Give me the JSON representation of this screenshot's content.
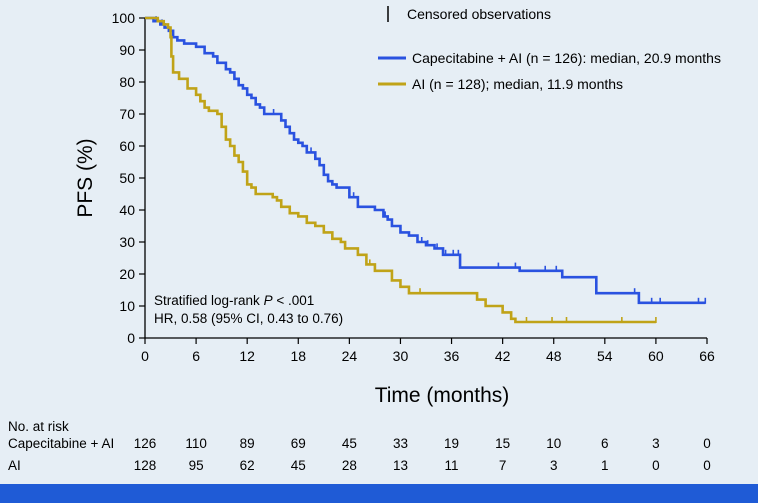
{
  "chart_data": {
    "type": "line",
    "subtype": "kaplan-meier",
    "xlabel": "Time (months)",
    "ylabel": "PFS (%)",
    "xlim": [
      0,
      66
    ],
    "ylim": [
      0,
      100
    ],
    "xticks": [
      0,
      6,
      12,
      18,
      24,
      30,
      36,
      42,
      48,
      54,
      60,
      66
    ],
    "yticks": [
      0,
      10,
      20,
      30,
      40,
      50,
      60,
      70,
      80,
      90,
      100
    ],
    "grid": false,
    "legend": {
      "placement": "top-right",
      "censored_label": "Censored observations"
    },
    "series": [
      {
        "name": "Capecitabine + AI (n = 126): median, 20.9 months",
        "color": "#2a52e0",
        "steps": [
          [
            0,
            100
          ],
          [
            1,
            99
          ],
          [
            1.8,
            98
          ],
          [
            2.3,
            97
          ],
          [
            2.8,
            96
          ],
          [
            3.3,
            94
          ],
          [
            3.8,
            93
          ],
          [
            4.6,
            92
          ],
          [
            6,
            91
          ],
          [
            7,
            89
          ],
          [
            8,
            88
          ],
          [
            8.5,
            86
          ],
          [
            9.5,
            84
          ],
          [
            10,
            83
          ],
          [
            10.5,
            81
          ],
          [
            11,
            79
          ],
          [
            11.5,
            78
          ],
          [
            12,
            76
          ],
          [
            12.5,
            75
          ],
          [
            13,
            73
          ],
          [
            13.5,
            72
          ],
          [
            14,
            70
          ],
          [
            16,
            68
          ],
          [
            16.5,
            66
          ],
          [
            17,
            64
          ],
          [
            17.5,
            62
          ],
          [
            18,
            61
          ],
          [
            18.5,
            60
          ],
          [
            19,
            58
          ],
          [
            20,
            56
          ],
          [
            20.5,
            54
          ],
          [
            21,
            51
          ],
          [
            21.5,
            49
          ],
          [
            22,
            48
          ],
          [
            22.5,
            47
          ],
          [
            24,
            44
          ],
          [
            25,
            41
          ],
          [
            27,
            40
          ],
          [
            28,
            38
          ],
          [
            28.5,
            37
          ],
          [
            29,
            35
          ],
          [
            30,
            33
          ],
          [
            31,
            32
          ],
          [
            32,
            30
          ],
          [
            33,
            29
          ],
          [
            34,
            28
          ],
          [
            35,
            26
          ],
          [
            37,
            22
          ],
          [
            44,
            21
          ],
          [
            49,
            19
          ],
          [
            53,
            14
          ],
          [
            58,
            11
          ],
          [
            65.8,
            11
          ]
        ],
        "censor_x": [
          1.3,
          2,
          15.1,
          17,
          19.5,
          24.5,
          28.2,
          32.5,
          33.2,
          34.3,
          35.3,
          36.2,
          36.8,
          41.5,
          43.5,
          47,
          48.3,
          57.5,
          59.5,
          60.5,
          65,
          65.8
        ]
      },
      {
        "name": "AI (n = 128); median, 11.9 months",
        "color": "#c0a318",
        "steps": [
          [
            0,
            100
          ],
          [
            1.5,
            99
          ],
          [
            2.2,
            98
          ],
          [
            2.7,
            97
          ],
          [
            3,
            94
          ],
          [
            3.1,
            88
          ],
          [
            3.3,
            83
          ],
          [
            4,
            81
          ],
          [
            5,
            78
          ],
          [
            6,
            76
          ],
          [
            6.5,
            74
          ],
          [
            7,
            72
          ],
          [
            7.5,
            71
          ],
          [
            8.5,
            70
          ],
          [
            9,
            66
          ],
          [
            9.5,
            62
          ],
          [
            10,
            60
          ],
          [
            10.5,
            57
          ],
          [
            11,
            55
          ],
          [
            11.5,
            52
          ],
          [
            12,
            48
          ],
          [
            12.5,
            47
          ],
          [
            13,
            45
          ],
          [
            15,
            44
          ],
          [
            15.5,
            43
          ],
          [
            16,
            41
          ],
          [
            17,
            39
          ],
          [
            18,
            38
          ],
          [
            19,
            36
          ],
          [
            20,
            35
          ],
          [
            21,
            33
          ],
          [
            22,
            31
          ],
          [
            23,
            30
          ],
          [
            23.5,
            28
          ],
          [
            25,
            26
          ],
          [
            26,
            23
          ],
          [
            27,
            21
          ],
          [
            29,
            18
          ],
          [
            30,
            16
          ],
          [
            31,
            14
          ],
          [
            39,
            12
          ],
          [
            40,
            10
          ],
          [
            42,
            8
          ],
          [
            43,
            6
          ],
          [
            43.5,
            5
          ],
          [
            60,
            5
          ]
        ],
        "censor_x": [
          26.4,
          32.3,
          44.8,
          47.8,
          49.5,
          56,
          60
        ]
      }
    ],
    "annotations": [
      {
        "text_prefix": "Stratified log-rank ",
        "text_italic": "P",
        "text_suffix": " < .001"
      },
      {
        "text": "HR, 0.58 (95% CI, 0.43 to 0.76)"
      }
    ],
    "risk_table": {
      "title": "No. at risk",
      "rows": [
        {
          "label": "Capecitabine + AI",
          "values": [
            "126",
            "110",
            "89",
            "69",
            "45",
            "33",
            "19",
            "15",
            "10",
            "6",
            "3",
            "0"
          ]
        },
        {
          "label": "AI",
          "values": [
            "128",
            "95",
            "62",
            "45",
            "28",
            "13",
            "11",
            "7",
            "3",
            "1",
            "0",
            "0"
          ]
        }
      ]
    }
  }
}
